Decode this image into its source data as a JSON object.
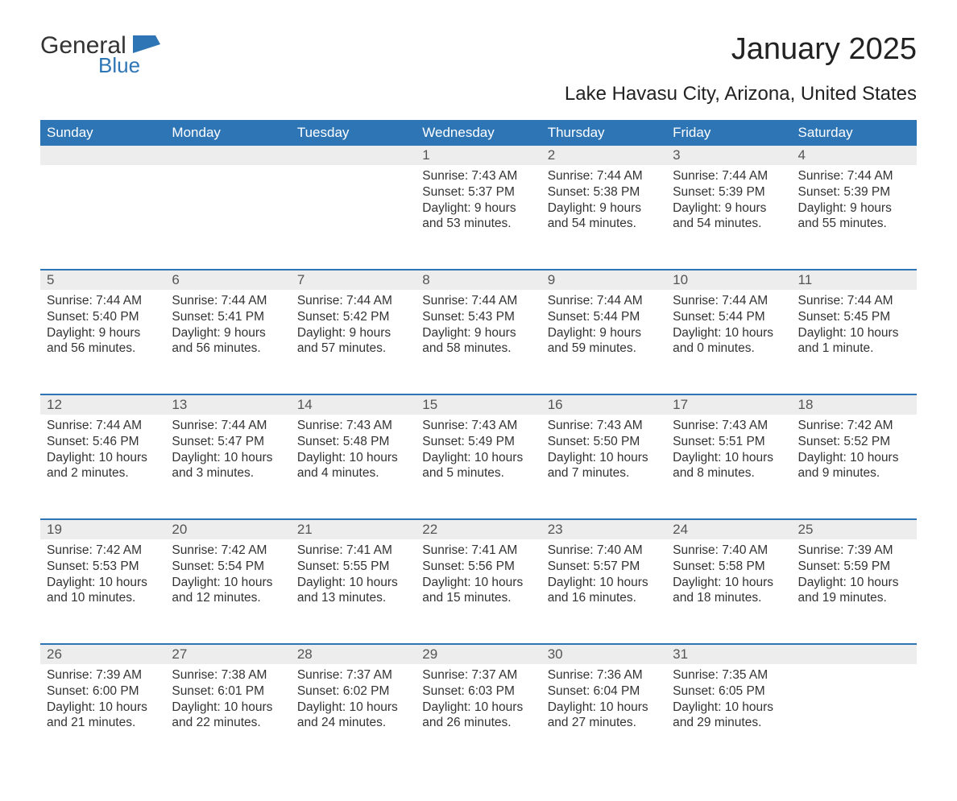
{
  "logo": {
    "main": "General",
    "sub": "Blue",
    "mark_color": "#2e75b6"
  },
  "title": "January 2025",
  "subtitle": "Lake Havasu City, Arizona, United States",
  "colors": {
    "header_bg": "#2e75b6",
    "header_text": "#ffffff",
    "daynum_bg": "#ededed",
    "daynum_text": "#555555",
    "row_border": "#2e75b6",
    "body_text": "#333333"
  },
  "day_headers": [
    "Sunday",
    "Monday",
    "Tuesday",
    "Wednesday",
    "Thursday",
    "Friday",
    "Saturday"
  ],
  "weeks": [
    [
      null,
      null,
      null,
      {
        "n": "1",
        "sr": "7:43 AM",
        "ss": "5:37 PM",
        "dl": "9 hours and 53 minutes."
      },
      {
        "n": "2",
        "sr": "7:44 AM",
        "ss": "5:38 PM",
        "dl": "9 hours and 54 minutes."
      },
      {
        "n": "3",
        "sr": "7:44 AM",
        "ss": "5:39 PM",
        "dl": "9 hours and 54 minutes."
      },
      {
        "n": "4",
        "sr": "7:44 AM",
        "ss": "5:39 PM",
        "dl": "9 hours and 55 minutes."
      }
    ],
    [
      {
        "n": "5",
        "sr": "7:44 AM",
        "ss": "5:40 PM",
        "dl": "9 hours and 56 minutes."
      },
      {
        "n": "6",
        "sr": "7:44 AM",
        "ss": "5:41 PM",
        "dl": "9 hours and 56 minutes."
      },
      {
        "n": "7",
        "sr": "7:44 AM",
        "ss": "5:42 PM",
        "dl": "9 hours and 57 minutes."
      },
      {
        "n": "8",
        "sr": "7:44 AM",
        "ss": "5:43 PM",
        "dl": "9 hours and 58 minutes."
      },
      {
        "n": "9",
        "sr": "7:44 AM",
        "ss": "5:44 PM",
        "dl": "9 hours and 59 minutes."
      },
      {
        "n": "10",
        "sr": "7:44 AM",
        "ss": "5:44 PM",
        "dl": "10 hours and 0 minutes."
      },
      {
        "n": "11",
        "sr": "7:44 AM",
        "ss": "5:45 PM",
        "dl": "10 hours and 1 minute."
      }
    ],
    [
      {
        "n": "12",
        "sr": "7:44 AM",
        "ss": "5:46 PM",
        "dl": "10 hours and 2 minutes."
      },
      {
        "n": "13",
        "sr": "7:44 AM",
        "ss": "5:47 PM",
        "dl": "10 hours and 3 minutes."
      },
      {
        "n": "14",
        "sr": "7:43 AM",
        "ss": "5:48 PM",
        "dl": "10 hours and 4 minutes."
      },
      {
        "n": "15",
        "sr": "7:43 AM",
        "ss": "5:49 PM",
        "dl": "10 hours and 5 minutes."
      },
      {
        "n": "16",
        "sr": "7:43 AM",
        "ss": "5:50 PM",
        "dl": "10 hours and 7 minutes."
      },
      {
        "n": "17",
        "sr": "7:43 AM",
        "ss": "5:51 PM",
        "dl": "10 hours and 8 minutes."
      },
      {
        "n": "18",
        "sr": "7:42 AM",
        "ss": "5:52 PM",
        "dl": "10 hours and 9 minutes."
      }
    ],
    [
      {
        "n": "19",
        "sr": "7:42 AM",
        "ss": "5:53 PM",
        "dl": "10 hours and 10 minutes."
      },
      {
        "n": "20",
        "sr": "7:42 AM",
        "ss": "5:54 PM",
        "dl": "10 hours and 12 minutes."
      },
      {
        "n": "21",
        "sr": "7:41 AM",
        "ss": "5:55 PM",
        "dl": "10 hours and 13 minutes."
      },
      {
        "n": "22",
        "sr": "7:41 AM",
        "ss": "5:56 PM",
        "dl": "10 hours and 15 minutes."
      },
      {
        "n": "23",
        "sr": "7:40 AM",
        "ss": "5:57 PM",
        "dl": "10 hours and 16 minutes."
      },
      {
        "n": "24",
        "sr": "7:40 AM",
        "ss": "5:58 PM",
        "dl": "10 hours and 18 minutes."
      },
      {
        "n": "25",
        "sr": "7:39 AM",
        "ss": "5:59 PM",
        "dl": "10 hours and 19 minutes."
      }
    ],
    [
      {
        "n": "26",
        "sr": "7:39 AM",
        "ss": "6:00 PM",
        "dl": "10 hours and 21 minutes."
      },
      {
        "n": "27",
        "sr": "7:38 AM",
        "ss": "6:01 PM",
        "dl": "10 hours and 22 minutes."
      },
      {
        "n": "28",
        "sr": "7:37 AM",
        "ss": "6:02 PM",
        "dl": "10 hours and 24 minutes."
      },
      {
        "n": "29",
        "sr": "7:37 AM",
        "ss": "6:03 PM",
        "dl": "10 hours and 26 minutes."
      },
      {
        "n": "30",
        "sr": "7:36 AM",
        "ss": "6:04 PM",
        "dl": "10 hours and 27 minutes."
      },
      {
        "n": "31",
        "sr": "7:35 AM",
        "ss": "6:05 PM",
        "dl": "10 hours and 29 minutes."
      },
      null
    ]
  ],
  "labels": {
    "sunrise": "Sunrise: ",
    "sunset": "Sunset: ",
    "daylight": "Daylight: "
  }
}
